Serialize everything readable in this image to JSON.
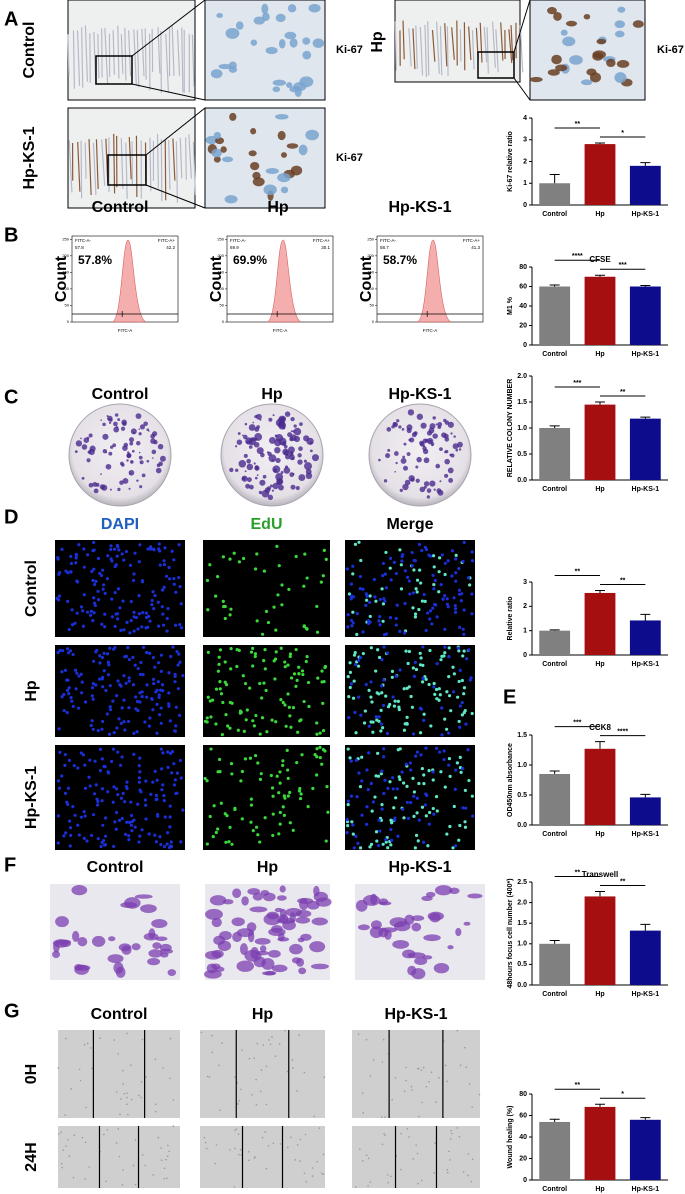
{
  "panels": {
    "labels": [
      "A",
      "B",
      "C",
      "D",
      "E",
      "F",
      "G"
    ]
  },
  "ihc": {
    "groups": [
      "Control",
      "Hp",
      "Hp-KS-1"
    ],
    "stain": "Ki-67"
  },
  "flow": {
    "groups": [
      "Control",
      "Hp",
      "Hp-KS-1"
    ],
    "percent": [
      "57.8%",
      "69.9%",
      "58.7%"
    ],
    "gate_left": "FITC-A-",
    "gate_right": "FITC-A+",
    "left_values": [
      57.8,
      69.9,
      58.7
    ],
    "right_values": [
      42.2,
      30.1,
      41.3
    ],
    "x_label": "FITC-A",
    "y_label": "Count",
    "yticks": [
      0,
      50,
      100,
      150,
      200,
      250
    ]
  },
  "colony": {
    "groups": [
      "Control",
      "Hp",
      "Hp-KS-1"
    ]
  },
  "edu": {
    "columns": [
      "DAPI",
      "EdU",
      "Merge"
    ],
    "rows": [
      "Control",
      "Hp",
      "Hp-KS-1"
    ]
  },
  "transwell": {
    "groups": [
      "Control",
      "Hp",
      "Hp-KS-1"
    ]
  },
  "wound": {
    "groups": [
      "Control",
      "Hp",
      "Hp-KS-1"
    ],
    "rows": [
      "0H",
      "24H"
    ]
  },
  "chart_data": [
    {
      "type": "bar",
      "y_label": "Ki-67 relative ratio",
      "categories": [
        "Control",
        "Hp",
        "Hp-KS-1"
      ],
      "values": [
        1.0,
        2.8,
        1.8
      ],
      "errors": [
        0.4,
        0.05,
        0.15
      ],
      "colors": [
        "#808080",
        "#a50f0f",
        "#0c0c8c"
      ],
      "ylim": [
        0,
        4
      ],
      "yticks": [
        0,
        1,
        2,
        3,
        4
      ],
      "significance": [
        "**",
        "*"
      ]
    },
    {
      "type": "bar",
      "title": "CFSE",
      "y_label": "M1 %",
      "categories": [
        "Control",
        "Hp",
        "Hp-KS-1"
      ],
      "values": [
        60,
        70,
        60
      ],
      "errors": [
        1.5,
        1.5,
        1
      ],
      "colors": [
        "#808080",
        "#a50f0f",
        "#0c0c8c"
      ],
      "ylim": [
        0,
        80
      ],
      "yticks": [
        0,
        20,
        40,
        60,
        80
      ],
      "significance": [
        "****",
        "***"
      ]
    },
    {
      "type": "bar",
      "y_label": "RELATIVE COLONY NUMBER",
      "categories": [
        "Control",
        "Hp",
        "Hp-KS-1"
      ],
      "values": [
        1.0,
        1.45,
        1.18
      ],
      "errors": [
        0.04,
        0.05,
        0.03
      ],
      "colors": [
        "#808080",
        "#a50f0f",
        "#0c0c8c"
      ],
      "ylim": [
        0,
        2
      ],
      "yticks": [
        {
          "value": 0,
          "label": "0.0"
        },
        {
          "value": 0.5,
          "label": "0.5"
        },
        {
          "value": 1,
          "label": "1.0"
        },
        {
          "value": 1.5,
          "label": "1.5"
        },
        {
          "value": 2,
          "label": "2.0"
        }
      ],
      "significance": [
        "***",
        "**"
      ]
    },
    {
      "type": "bar",
      "y_label": "Relative ratio",
      "categories": [
        "Control",
        "Hp",
        "Hp-KS-1"
      ],
      "values": [
        1.0,
        2.55,
        1.42
      ],
      "errors": [
        0.03,
        0.1,
        0.25
      ],
      "colors": [
        "#808080",
        "#a50f0f",
        "#0c0c8c"
      ],
      "ylim": [
        0,
        3
      ],
      "yticks": [
        0,
        1,
        2,
        3
      ],
      "significance": [
        "**",
        "**"
      ]
    },
    {
      "type": "bar",
      "title": "CCK8",
      "y_label": "OD450nm absorbance",
      "categories": [
        "Control",
        "Hp",
        "Hp-KS-1"
      ],
      "values": [
        0.85,
        1.27,
        0.46
      ],
      "errors": [
        0.05,
        0.12,
        0.05
      ],
      "colors": [
        "#808080",
        "#a50f0f",
        "#0c0c8c"
      ],
      "ylim": [
        0,
        1.5
      ],
      "yticks": [
        {
          "value": 0,
          "label": "0.0"
        },
        {
          "value": 0.5,
          "label": "0.5"
        },
        {
          "value": 1,
          "label": "1.0"
        },
        {
          "value": 1.5,
          "label": "1.5"
        }
      ],
      "significance": [
        "***",
        "****"
      ]
    },
    {
      "type": "bar",
      "title": "Transwell",
      "y_label": "48hours focus cell number (400*)",
      "categories": [
        "Control",
        "Hp",
        "Hp-KS-1"
      ],
      "values": [
        1.0,
        2.15,
        1.32
      ],
      "errors": [
        0.08,
        0.12,
        0.15
      ],
      "colors": [
        "#808080",
        "#a50f0f",
        "#0c0c8c"
      ],
      "ylim": [
        0,
        2.5
      ],
      "yticks": [
        {
          "value": 0,
          "label": "0.0"
        },
        {
          "value": 0.5,
          "label": "0.5"
        },
        {
          "value": 1,
          "label": "1.0"
        },
        {
          "value": 1.5,
          "label": "1.5"
        },
        {
          "value": 2,
          "label": "2.0"
        },
        {
          "value": 2.5,
          "label": "2.5"
        }
      ],
      "significance": [
        "**",
        "**"
      ]
    },
    {
      "type": "bar",
      "y_label": "Wound healing (%)",
      "categories": [
        "Control",
        "Hp",
        "Hp-KS-1"
      ],
      "values": [
        54,
        68,
        56
      ],
      "errors": [
        2.5,
        2.5,
        2
      ],
      "colors": [
        "#808080",
        "#a50f0f",
        "#0c0c8c"
      ],
      "ylim": [
        0,
        80
      ],
      "yticks": [
        0,
        20,
        40,
        60,
        80
      ],
      "significance": [
        "**",
        "*"
      ]
    }
  ]
}
